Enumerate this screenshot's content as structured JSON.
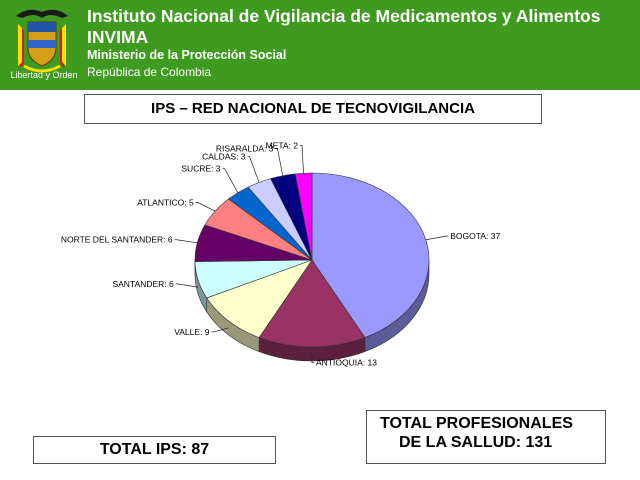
{
  "header": {
    "title_line1": "Instituto Nacional de Vigilancia de Medicamentos y Alimentos",
    "title_line2": "INVIMA",
    "subtitle": "Ministerio de la Protección Social",
    "country": "República de Colombia",
    "seal_motto": "Libertad y Orden",
    "background_color": "#3f9b1f"
  },
  "slide": {
    "title": "IPS – RED NACIONAL DE TECNOVIGILANCIA"
  },
  "chart_data": {
    "type": "pie",
    "title": "",
    "slices": [
      {
        "label": "BOGOTA",
        "value": 37,
        "display": "BOGOTA: 37",
        "color": "#9999ff"
      },
      {
        "label": "ANTIOQUIA",
        "value": 13,
        "display": "ANTIOQUIA: 13",
        "color": "#993366"
      },
      {
        "label": "VALLE",
        "value": 9,
        "display": "VALLE: 9",
        "color": "#ffffcc"
      },
      {
        "label": "SANTANDER",
        "value": 6,
        "display": "SANTANDER: 6",
        "color": "#ccffff"
      },
      {
        "label": "NORTE DEL SANTANDER",
        "value": 6,
        "display": "NORTE DEL SANTANDER: 6",
        "color": "#660066"
      },
      {
        "label": "ATLANTICO",
        "value": 5,
        "display": "ATLANTICO: 5",
        "color": "#ff8080"
      },
      {
        "label": "SUCRE",
        "value": 3,
        "display": "SUCRE: 3",
        "color": "#0066cc"
      },
      {
        "label": "CALDAS",
        "value": 3,
        "display": "CALDAS: 3",
        "color": "#ccccff"
      },
      {
        "label": "RISARALDA",
        "value": 3,
        "display": "RISARALDA: 3",
        "color": "#000080"
      },
      {
        "label": "META",
        "value": 2,
        "display": "META: 2",
        "color": "#ff00ff"
      }
    ],
    "style": "3d",
    "legend": "none"
  },
  "totals": {
    "ips": "TOTAL IPS: 87",
    "prof_line1": "TOTAL PROFESIONALES",
    "prof_line2": "DE LA SALLUD: 131"
  }
}
